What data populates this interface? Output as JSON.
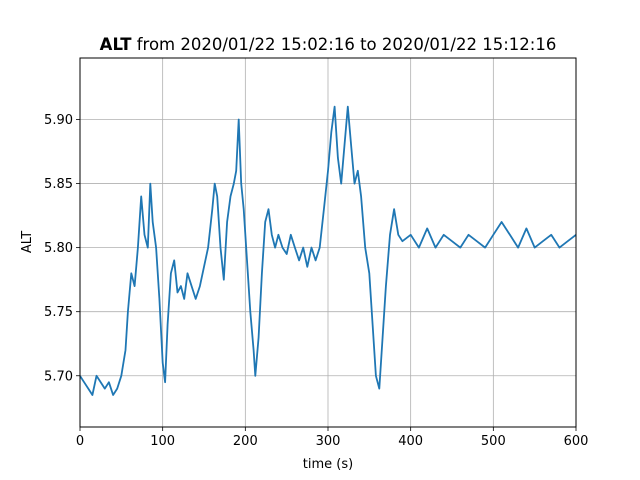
{
  "chart_data": {
    "type": "line",
    "title_bold": "ALT",
    "title_rest": " from 2020/01/22 15:02:16 to 2020/01/22 15:12:16",
    "xlabel": "time (s)",
    "ylabel": "ALT",
    "xlim": [
      0,
      600
    ],
    "ylim": [
      5.66,
      5.948
    ],
    "xticks": [
      0,
      100,
      200,
      300,
      400,
      500,
      600
    ],
    "xtick_labels": [
      "0",
      "100",
      "200",
      "300",
      "400",
      "500",
      "600"
    ],
    "yticks": [
      5.7,
      5.75,
      5.8,
      5.85,
      5.9
    ],
    "ytick_labels": [
      "5.70",
      "5.75",
      "5.80",
      "5.85",
      "5.90"
    ],
    "grid": true,
    "line_color": "#1f77b4",
    "series": [
      {
        "x": [
          0,
          5,
          10,
          15,
          20,
          25,
          30,
          35,
          40,
          45,
          50,
          55,
          58,
          62,
          66,
          70,
          74,
          78,
          82,
          85,
          88,
          92,
          96,
          100,
          103,
          106,
          110,
          114,
          118,
          122,
          126,
          130,
          135,
          140,
          145,
          150,
          155,
          160,
          163,
          166,
          170,
          174,
          178,
          182,
          186,
          189,
          192,
          195,
          198,
          202,
          206,
          210,
          212,
          216,
          220,
          224,
          228,
          232,
          236,
          240,
          245,
          250,
          255,
          260,
          265,
          270,
          275,
          280,
          285,
          290,
          295,
          300,
          304,
          308,
          312,
          316,
          320,
          324,
          328,
          332,
          336,
          340,
          345,
          350,
          354,
          358,
          362,
          366,
          370,
          375,
          380,
          385,
          390,
          400,
          410,
          420,
          430,
          440,
          450,
          460,
          470,
          480,
          490,
          500,
          510,
          520,
          530,
          540,
          550,
          560,
          570,
          580,
          590,
          600
        ],
        "y": [
          5.7,
          5.695,
          5.69,
          5.685,
          5.7,
          5.695,
          5.69,
          5.695,
          5.685,
          5.69,
          5.7,
          5.72,
          5.75,
          5.78,
          5.77,
          5.8,
          5.84,
          5.81,
          5.8,
          5.85,
          5.82,
          5.8,
          5.76,
          5.71,
          5.695,
          5.74,
          5.78,
          5.79,
          5.765,
          5.77,
          5.76,
          5.78,
          5.77,
          5.76,
          5.77,
          5.785,
          5.8,
          5.83,
          5.85,
          5.84,
          5.8,
          5.775,
          5.82,
          5.84,
          5.85,
          5.86,
          5.9,
          5.85,
          5.83,
          5.79,
          5.75,
          5.72,
          5.7,
          5.73,
          5.78,
          5.82,
          5.83,
          5.81,
          5.8,
          5.81,
          5.8,
          5.795,
          5.81,
          5.8,
          5.79,
          5.8,
          5.785,
          5.8,
          5.79,
          5.8,
          5.83,
          5.86,
          5.89,
          5.91,
          5.87,
          5.85,
          5.88,
          5.91,
          5.88,
          5.85,
          5.86,
          5.84,
          5.8,
          5.78,
          5.74,
          5.7,
          5.69,
          5.73,
          5.77,
          5.81,
          5.83,
          5.81,
          5.805,
          5.81,
          5.8,
          5.815,
          5.8,
          5.81,
          5.805,
          5.8,
          5.81,
          5.805,
          5.8,
          5.81,
          5.82,
          5.81,
          5.8,
          5.815,
          5.8,
          5.805,
          5.81,
          5.8,
          5.805,
          5.81
        ]
      }
    ]
  }
}
